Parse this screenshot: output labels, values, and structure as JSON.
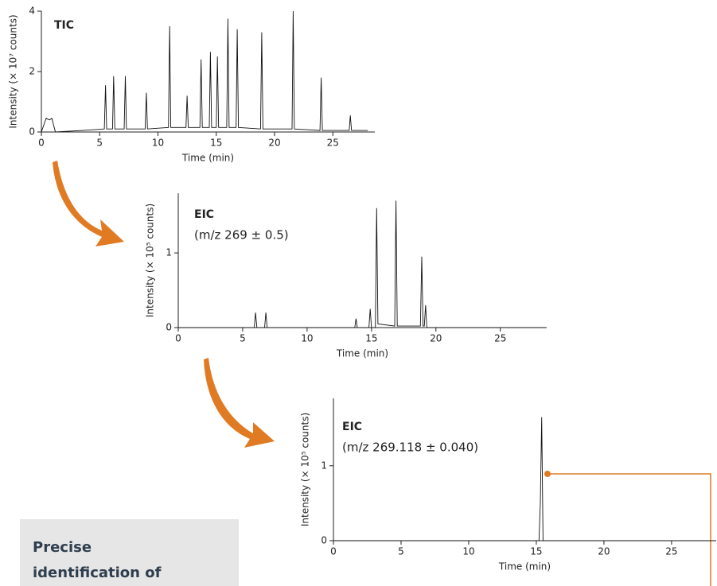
{
  "chart_data": [
    {
      "type": "line",
      "title": "TIC",
      "xlabel": "Time (min)",
      "ylabel": "Intensity (× 10⁷ counts)",
      "xlim": [
        0,
        28.6
      ],
      "ylim": [
        0,
        4
      ],
      "xticks": [
        0,
        5,
        10,
        15,
        20,
        25
      ],
      "yticks": [
        0,
        2,
        4
      ],
      "series": [
        {
          "color": "#111111",
          "x": [
            0,
            0.4,
            0.7,
            0.9,
            1.2,
            3.5,
            5.4,
            5.5,
            5.6,
            6.1,
            6.2,
            6.3,
            7.1,
            7.2,
            7.3,
            8.9,
            9,
            9.1,
            10.9,
            11,
            11.1,
            12.4,
            12.5,
            12.6,
            13.6,
            13.7,
            13.8,
            14.4,
            14.5,
            14.6,
            15.0,
            15.1,
            15.2,
            15.9,
            16,
            16.1,
            16.7,
            16.8,
            16.9,
            18.8,
            18.9,
            19,
            21.5,
            21.6,
            21.7,
            23.9,
            24,
            24.1,
            26.4,
            26.5,
            26.6,
            28
          ],
          "values": [
            0,
            0.45,
            0.4,
            0.45,
            0,
            0.05,
            0.1,
            1.55,
            0.1,
            0.1,
            1.85,
            0.1,
            0.1,
            1.85,
            0.1,
            0.1,
            1.3,
            0.1,
            0.15,
            3.5,
            0.15,
            0.15,
            1.2,
            0.15,
            0.15,
            2.4,
            0.15,
            0.15,
            2.65,
            0.15,
            0.15,
            2.5,
            0.15,
            0.15,
            3.75,
            0.15,
            0.15,
            3.4,
            0.15,
            0.1,
            3.3,
            0.1,
            0.1,
            4.0,
            0.1,
            0.05,
            1.8,
            0.05,
            0.05,
            0.55,
            0.05,
            0.05
          ]
        }
      ]
    },
    {
      "type": "line",
      "title": "EIC",
      "subtitle": "(m/z 269 ± 0.5)",
      "xlabel": "Time (min)",
      "ylabel": "Intensity (× 10⁵ counts)",
      "xlim": [
        0,
        28.6
      ],
      "ylim": [
        0,
        1.8
      ],
      "xticks": [
        0,
        5,
        10,
        15,
        20,
        25
      ],
      "yticks": [
        0,
        1
      ],
      "series": [
        {
          "color": "#111111",
          "x": [
            0,
            5.9,
            6.0,
            6.1,
            6.7,
            6.8,
            6.9,
            13.7,
            13.8,
            13.9,
            14.8,
            14.9,
            15.0,
            15.3,
            15.4,
            15.5,
            16.8,
            16.9,
            17.0,
            18.8,
            18.9,
            19.0,
            19.1,
            19.2,
            19.3,
            28.5
          ],
          "values": [
            0,
            0,
            0.2,
            0,
            0,
            0.2,
            0,
            0,
            0.12,
            0,
            0,
            0.25,
            0,
            0,
            1.6,
            0.05,
            0.02,
            1.7,
            0.02,
            0.02,
            0.95,
            0.02,
            0.02,
            0.3,
            0,
            0
          ]
        }
      ]
    },
    {
      "type": "line",
      "title": "EIC",
      "subtitle": "(m/z 269.118 ± 0.040)",
      "xlabel": "Time (min)",
      "ylabel": "Intensity (× 10⁵ counts)",
      "xlim": [
        0,
        28.3
      ],
      "ylim": [
        0,
        1.9
      ],
      "xticks": [
        0,
        5,
        10,
        15,
        20,
        25
      ],
      "yticks": [
        0,
        1
      ],
      "series": [
        {
          "color": "#111111",
          "x": [
            0,
            15.2,
            15.3,
            15.4,
            15.5,
            28.3
          ],
          "values": [
            0,
            0,
            0.5,
            1.65,
            0,
            0
          ]
        }
      ]
    }
  ],
  "note_box": {
    "lines": [
      "Precise",
      "identification of"
    ]
  }
}
